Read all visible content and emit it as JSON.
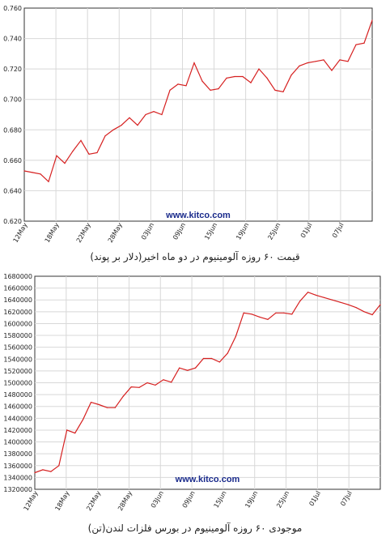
{
  "chart_data": [
    {
      "type": "line",
      "title": "",
      "xlabel": "",
      "ylabel": "",
      "ylim": [
        0.62,
        0.76
      ],
      "yticks": [
        "0.620",
        "0.640",
        "0.660",
        "0.680",
        "0.700",
        "0.720",
        "0.740",
        "0.760"
      ],
      "xticks": [
        "12May",
        "18May",
        "22May",
        "28May",
        "03Jun",
        "09Jun",
        "15Jun",
        "19Jun",
        "25Jun",
        "01Jul",
        "07Jul"
      ],
      "grid": true,
      "color": "#d62020",
      "watermark": "www.kitco.com",
      "series": [
        {
          "values": [
            0.653,
            0.652,
            0.651,
            0.646,
            0.663,
            0.658,
            0.666,
            0.673,
            0.664,
            0.665,
            0.676,
            0.68,
            0.683,
            0.688,
            0.683,
            0.69,
            0.692,
            0.69,
            0.706,
            0.71,
            0.709,
            0.724,
            0.712,
            0.706,
            0.707,
            0.714,
            0.715,
            0.715,
            0.711,
            0.72,
            0.714,
            0.706,
            0.705,
            0.716,
            0.722,
            0.724,
            0.725,
            0.726,
            0.719,
            0.726,
            0.725,
            0.736,
            0.737,
            0.752
          ]
        }
      ]
    },
    {
      "type": "line",
      "title": "",
      "xlabel": "",
      "ylabel": "",
      "ylim": [
        1320000,
        1680000
      ],
      "yticks": [
        "1320000",
        "1340000",
        "1360000",
        "1380000",
        "1400000",
        "1420000",
        "1440000",
        "1460000",
        "1480000",
        "1500000",
        "1520000",
        "1540000",
        "1560000",
        "1580000",
        "1600000",
        "1620000",
        "1640000",
        "1660000",
        "1680000"
      ],
      "xticks": [
        "12May",
        "18May",
        "22May",
        "28May",
        "03Jun",
        "09Jun",
        "15Jun",
        "19Jun",
        "25Jun",
        "01Jul",
        "07Jul"
      ],
      "grid": true,
      "color": "#d62020",
      "watermark": "www.kitco.com",
      "series": [
        {
          "values": [
            1348000,
            1353000,
            1350000,
            1360000,
            1420000,
            1415000,
            1438000,
            1467000,
            1463000,
            1458000,
            1458000,
            1477000,
            1493000,
            1492000,
            1500000,
            1496000,
            1505000,
            1501000,
            1525000,
            1521000,
            1525000,
            1541000,
            1541000,
            1535000,
            1550000,
            1578000,
            1618000,
            1616000,
            1611000,
            1607000,
            1618000,
            1618000,
            1616000,
            1638000,
            1653000,
            1648000,
            1644000,
            1640000,
            1636000,
            1632000,
            1627000,
            1620000,
            1615000,
            1632000
          ]
        }
      ]
    }
  ],
  "captions": {
    "chart1": "قیمت ۶۰ روزه آلومینیوم در دو ماه اخیر(دلار بر پوند)",
    "chart2": "موجودی ۶۰ روزه آلومینیوم در بورس فلزات لندن(تن)"
  }
}
